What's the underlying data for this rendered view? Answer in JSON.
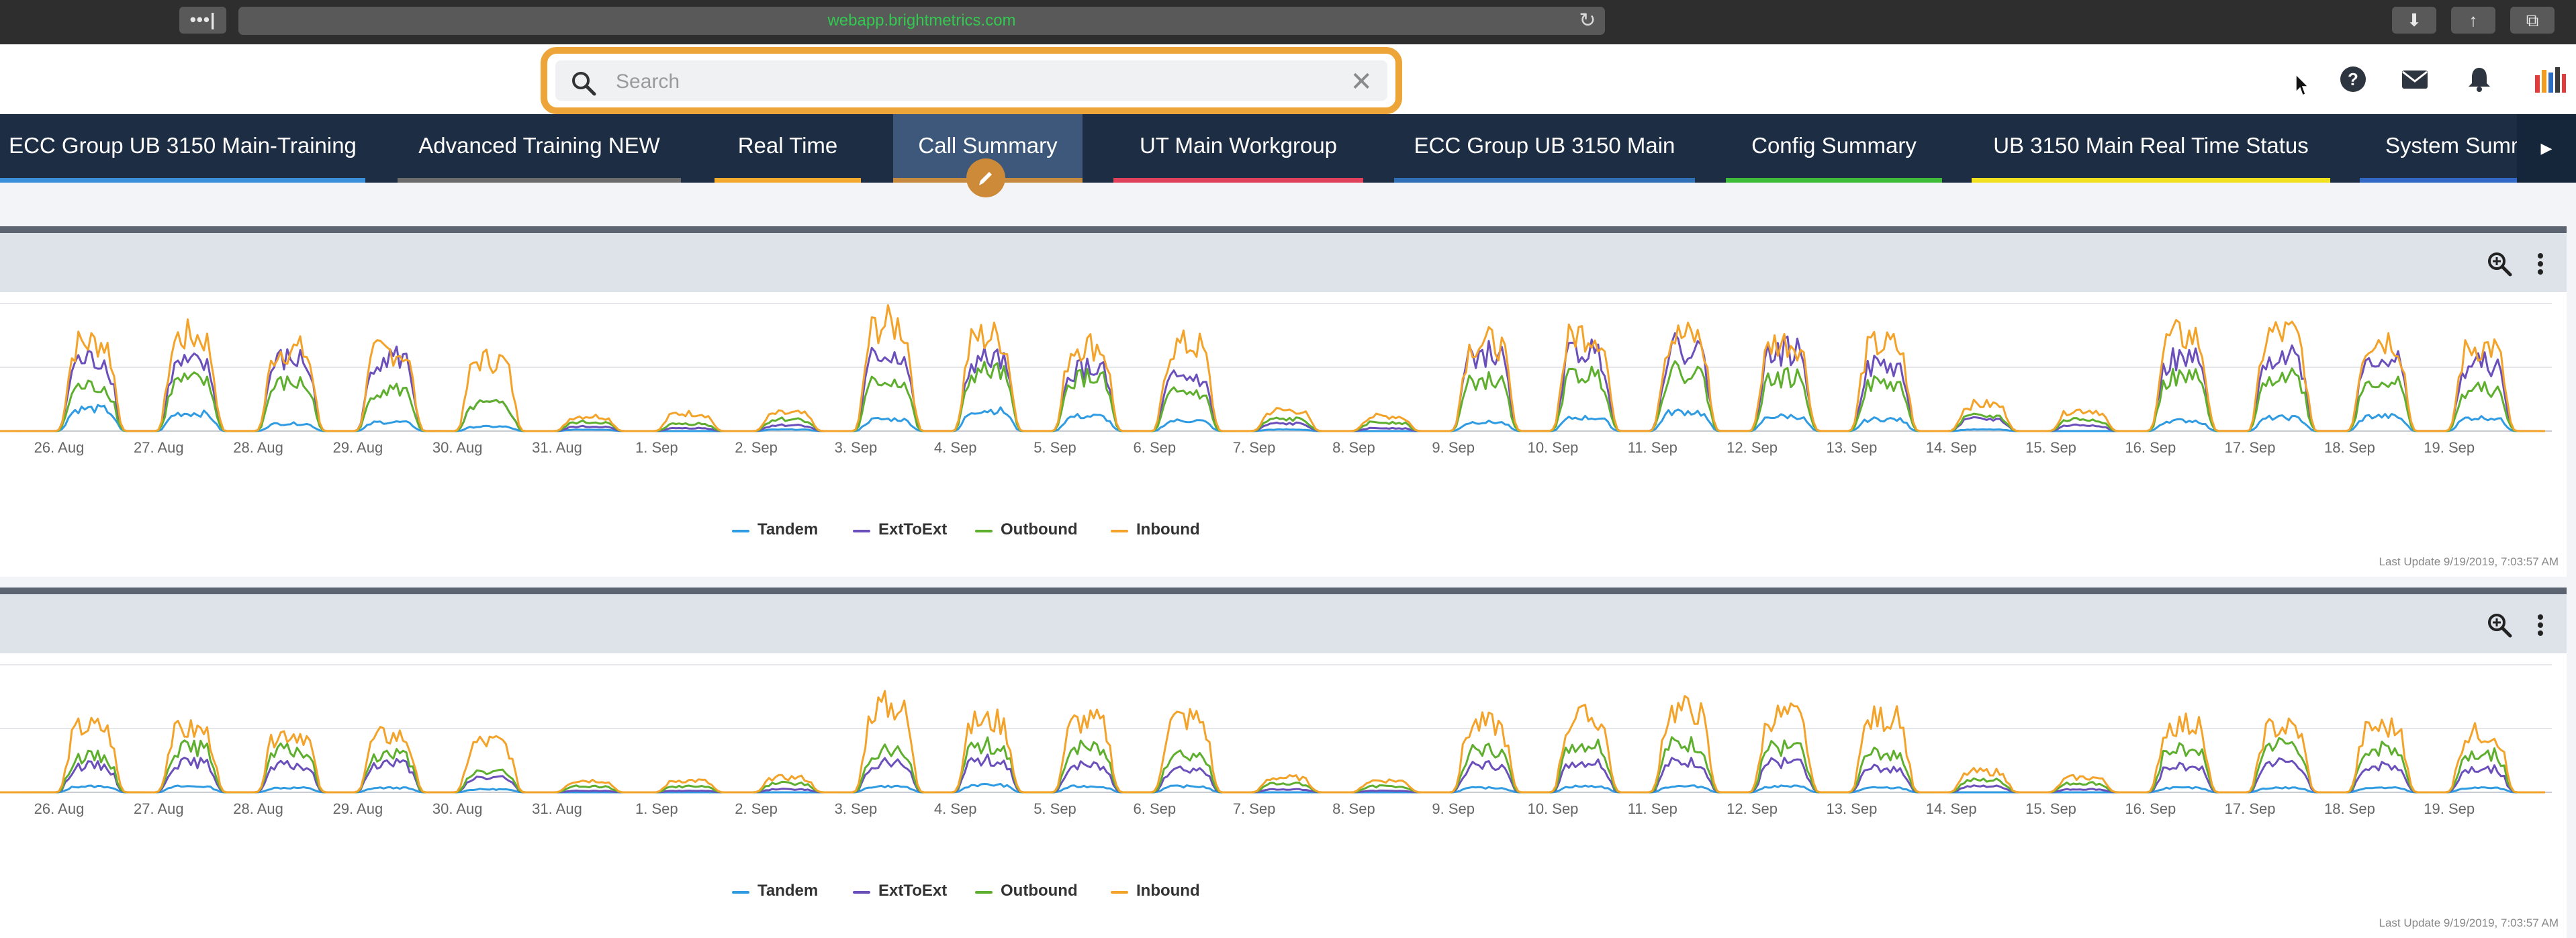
{
  "browser": {
    "url": "webapp.brightmetrics.com",
    "tabs_button": "•••|"
  },
  "search": {
    "placeholder": "Search",
    "value": ""
  },
  "header_icons": [
    "help-icon",
    "mail-icon",
    "bell-icon",
    "brightmetrics-logo"
  ],
  "tabs": [
    {
      "label": "ECC Group UB 3150 Main-Training",
      "color": "#3b8fd9"
    },
    {
      "label": "Advanced Training NEW",
      "color": "#6b6b6b"
    },
    {
      "label": "Real Time",
      "color": "#f2a92e"
    },
    {
      "label": "Call Summary",
      "color": "#c58a3d",
      "active": true
    },
    {
      "label": "UT Main Workgroup",
      "color": "#e0405a"
    },
    {
      "label": "ECC Group UB 3150 Main",
      "color": "#2f6fb6"
    },
    {
      "label": "Config Summary",
      "color": "#3fbb3a"
    },
    {
      "label": "UB 3150 Main Real Time Status",
      "color": "#f0e020"
    },
    {
      "label": "System Summ",
      "color": "#3068c4"
    }
  ],
  "panels": [
    {
      "last_update": "Last Update 9/19/2019, 7:03:57 AM"
    },
    {
      "last_update": "Last Update 9/19/2019, 7:03:57 AM"
    }
  ],
  "chart_data": [
    {
      "type": "line",
      "x": [
        "26. Aug",
        "27. Aug",
        "28. Aug",
        "29. Aug",
        "30. Aug",
        "31. Aug",
        "1. Sep",
        "2. Sep",
        "3. Sep",
        "4. Sep",
        "5. Sep",
        "6. Sep",
        "7. Sep",
        "8. Sep",
        "9. Sep",
        "10. Sep",
        "11. Sep",
        "12. Sep",
        "13. Sep",
        "14. Sep",
        "15. Sep",
        "16. Sep",
        "17. Sep",
        "18. Sep",
        "19. Sep"
      ],
      "series": [
        {
          "name": "Tandem",
          "color": "#2f9be3",
          "values": [
            15,
            12,
            5,
            6,
            3,
            1,
            0,
            1,
            8,
            14,
            10,
            7,
            1,
            0,
            6,
            9,
            13,
            10,
            8,
            1,
            0,
            7,
            9,
            10,
            9
          ]
        },
        {
          "name": "ExtToExt",
          "color": "#6b4fbb",
          "values": [
            48,
            45,
            48,
            50,
            18,
            3,
            2,
            4,
            52,
            48,
            42,
            36,
            5,
            2,
            52,
            54,
            56,
            54,
            44,
            8,
            4,
            48,
            52,
            50,
            45
          ]
        },
        {
          "name": "Outbound",
          "color": "#5faf2e",
          "values": [
            30,
            34,
            32,
            28,
            18,
            6,
            5,
            8,
            34,
            40,
            36,
            26,
            8,
            6,
            34,
            38,
            40,
            36,
            32,
            10,
            8,
            36,
            38,
            34,
            28
          ]
        },
        {
          "name": "Inbound",
          "color": "#f4a32a",
          "values": [
            60,
            64,
            55,
            54,
            48,
            10,
            12,
            12,
            72,
            64,
            58,
            58,
            14,
            10,
            60,
            66,
            64,
            60,
            58,
            18,
            14,
            64,
            66,
            62,
            57
          ]
        }
      ]
    },
    {
      "type": "line",
      "x": [
        "26. Aug",
        "27. Aug",
        "28. Aug",
        "29. Aug",
        "30. Aug",
        "31. Aug",
        "1. Sep",
        "2. Sep",
        "3. Sep",
        "4. Sep",
        "5. Sep",
        "6. Sep",
        "7. Sep",
        "8. Sep",
        "9. Sep",
        "10. Sep",
        "11. Sep",
        "12. Sep",
        "13. Sep",
        "14. Sep",
        "15. Sep",
        "16. Sep",
        "17. Sep",
        "18. Sep",
        "19. Sep"
      ],
      "series": [
        {
          "name": "Tandem",
          "color": "#2f9be3",
          "values": [
            4,
            4,
            3,
            3,
            2,
            0,
            0,
            0,
            4,
            5,
            4,
            4,
            0,
            0,
            3,
            4,
            4,
            4,
            3,
            0,
            0,
            3,
            3,
            3,
            3
          ]
        },
        {
          "name": "ExtToExt",
          "color": "#6b4fbb",
          "values": [
            18,
            20,
            18,
            20,
            10,
            1,
            1,
            2,
            20,
            22,
            18,
            16,
            2,
            1,
            18,
            20,
            20,
            20,
            16,
            4,
            2,
            18,
            20,
            18,
            16
          ]
        },
        {
          "name": "Outbound",
          "color": "#5faf2e",
          "values": [
            24,
            30,
            28,
            26,
            14,
            4,
            4,
            6,
            28,
            32,
            30,
            26,
            6,
            4,
            28,
            32,
            32,
            30,
            26,
            8,
            6,
            30,
            32,
            30,
            26
          ]
        },
        {
          "name": "Inbound",
          "color": "#f4a32a",
          "values": [
            44,
            42,
            40,
            38,
            34,
            8,
            8,
            10,
            58,
            48,
            48,
            50,
            10,
            8,
            46,
            50,
            56,
            52,
            50,
            14,
            10,
            46,
            44,
            44,
            40
          ]
        }
      ]
    }
  ]
}
